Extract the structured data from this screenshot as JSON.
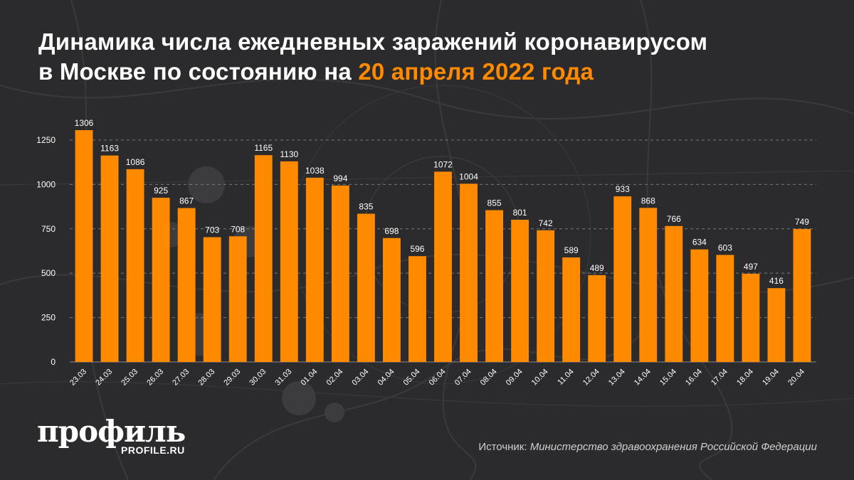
{
  "title": {
    "line1": "Динамика числа ежедневных заражений коронавирусом",
    "line2_prefix": "в Москве по состоянию на ",
    "line2_accent": "20 апреля 2022 года"
  },
  "colors": {
    "background": "#2b2b2d",
    "bar": "#ff8a00",
    "accent": "#ff8a00",
    "text": "#ffffff"
  },
  "chart_data": {
    "type": "bar",
    "categories": [
      "23.03",
      "24.03",
      "25.03",
      "26.03",
      "27.03",
      "28.03",
      "29.03",
      "30.03",
      "31.03",
      "01.04",
      "02.04",
      "03.04",
      "04.04",
      "05.04",
      "06.04",
      "07.04",
      "08.04",
      "09.04",
      "10.04",
      "11.04",
      "12.04",
      "13.04",
      "14.04",
      "15.04",
      "16.04",
      "17.04",
      "18.04",
      "19.04",
      "20.04"
    ],
    "values": [
      1306,
      1163,
      1086,
      925,
      867,
      703,
      708,
      1165,
      1130,
      1038,
      994,
      835,
      698,
      596,
      1072,
      1004,
      855,
      801,
      742,
      589,
      489,
      933,
      868,
      766,
      634,
      603,
      497,
      416,
      749
    ],
    "yticks": [
      0,
      250,
      500,
      750,
      1000,
      1250
    ],
    "ylim": [
      0,
      1350
    ],
    "grid": true,
    "data_labels": true,
    "xlabel": "",
    "ylabel": ""
  },
  "logo": {
    "word": "профиль",
    "url": "PROFILE.RU"
  },
  "source": {
    "label": "Источник: ",
    "name": "Министерство здравоохранения Российской Федерации"
  }
}
